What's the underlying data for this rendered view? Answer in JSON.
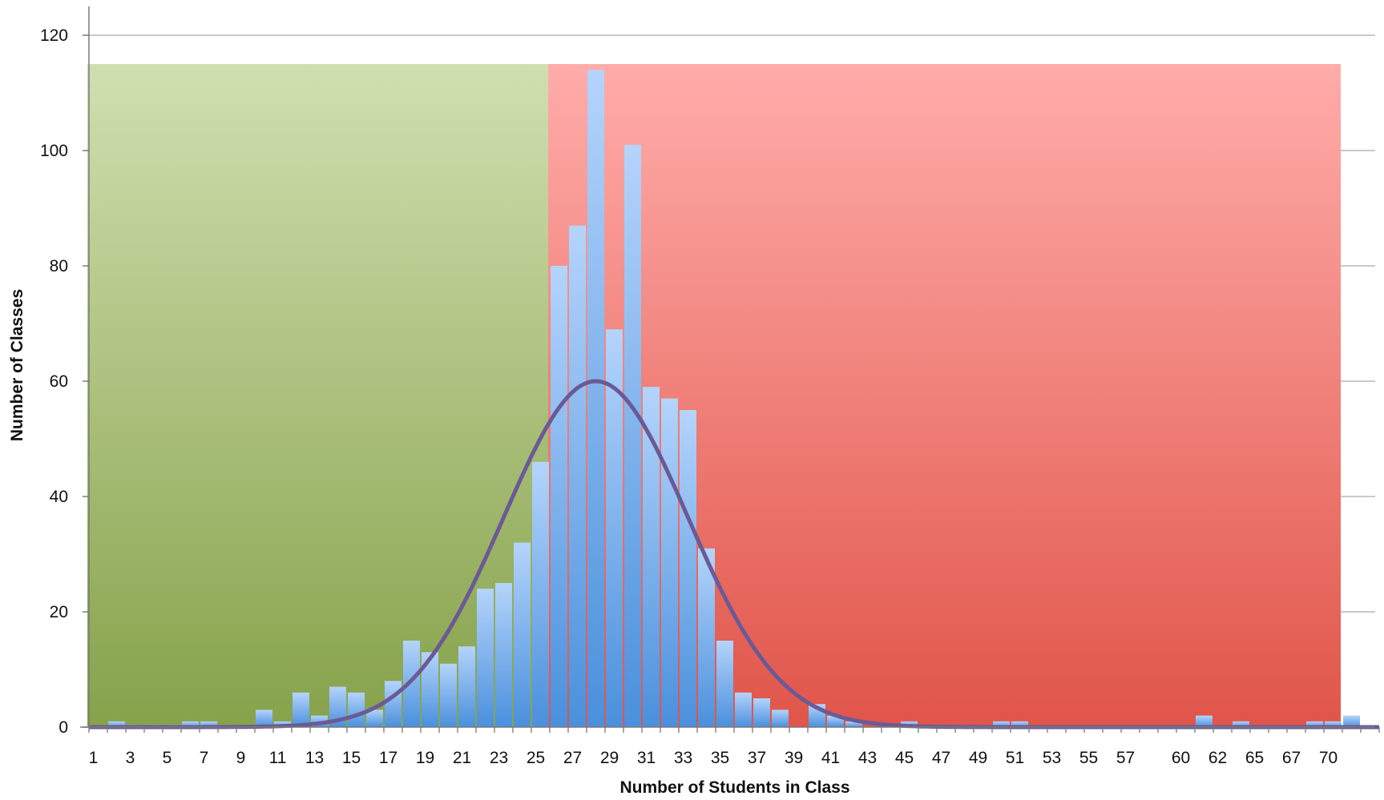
{
  "chart_data": {
    "type": "bar",
    "xlabel": "Number of Students in Class",
    "ylabel": "Number of Classes",
    "ylim": [
      0,
      120
    ],
    "yticks": [
      0,
      20,
      40,
      60,
      80,
      100,
      120
    ],
    "grid": true,
    "legend": "none",
    "categories": [
      "1",
      "2",
      "3",
      "4",
      "5",
      "6",
      "7",
      "8",
      "9",
      "10",
      "11",
      "12",
      "13",
      "14",
      "15",
      "16",
      "17",
      "18",
      "19",
      "20",
      "21",
      "22",
      "23",
      "24",
      "25",
      "26",
      "27",
      "28",
      "29",
      "30",
      "31",
      "32",
      "33",
      "34",
      "35",
      "36",
      "37",
      "38",
      "39",
      "40",
      "41",
      "42",
      "43",
      "44",
      "45",
      "46",
      "47",
      "48",
      "49",
      "50",
      "51",
      "52",
      "53",
      "54",
      "55",
      "56",
      "57",
      "58",
      "59",
      "60",
      "61",
      "62",
      "63",
      "65",
      "66",
      "67",
      "68",
      "70",
      "71",
      "72"
    ],
    "x_tick_labels": [
      "1",
      "3",
      "5",
      "7",
      "9",
      "11",
      "13",
      "15",
      "17",
      "19",
      "21",
      "23",
      "25",
      "27",
      "29",
      "31",
      "33",
      "35",
      "37",
      "39",
      "41",
      "43",
      "45",
      "47",
      "49",
      "51",
      "53",
      "55",
      "57",
      "60",
      "62",
      "65",
      "67",
      "70"
    ],
    "series": [
      {
        "type": "bar",
        "color": "#6aa6ee",
        "values": [
          0,
          1,
          0,
          0,
          0,
          1,
          1,
          0,
          0,
          3,
          1,
          6,
          2,
          7,
          6,
          3,
          8,
          15,
          13,
          11,
          14,
          24,
          25,
          32,
          46,
          80,
          87,
          114,
          69,
          101,
          59,
          57,
          55,
          31,
          15,
          6,
          5,
          3,
          0,
          4,
          2,
          1,
          0,
          0,
          1,
          0,
          0,
          0,
          0,
          1,
          1,
          0,
          0,
          0,
          0,
          0,
          0,
          0,
          0,
          0,
          2,
          0,
          1,
          0,
          0,
          0,
          1,
          1,
          2,
          0
        ]
      },
      {
        "type": "line",
        "color": "#6b5a96",
        "distribution": "normal",
        "mean": 28,
        "sd": 5,
        "peak": 60
      }
    ],
    "shaded_regions": [
      {
        "from": "1",
        "to": "25",
        "color_top": "#d0dfb0",
        "color_bottom": "#86a24a"
      },
      {
        "from": "26",
        "to": "70",
        "color_top": "#ffacaa",
        "color_bottom": "#e05549"
      }
    ]
  }
}
